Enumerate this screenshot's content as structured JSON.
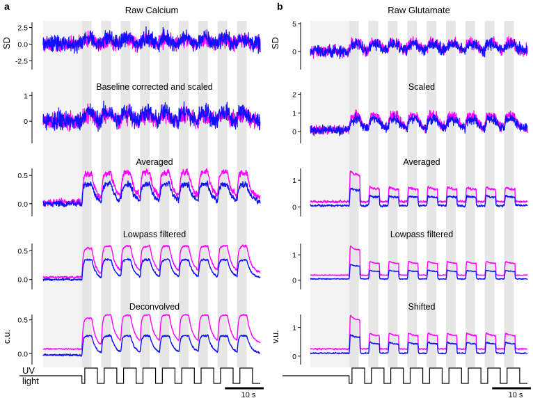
{
  "colors": {
    "series_a": "#ff00ff",
    "series_b": "#1010ff",
    "stim_band": "#e6e6e6",
    "baseline_band": "#f3f3f3",
    "axis": "#000000"
  },
  "panels": [
    {
      "letter": "a",
      "title": "Raw Calcium",
      "stimulus_label_line1": "UV",
      "stimulus_label_line2": "light",
      "scalebar_label": "10 s",
      "time_range_s": [
        0,
        56
      ],
      "baseline_end_s": 10,
      "stim_on_s": [
        10,
        15,
        20,
        25,
        30,
        35,
        40,
        45,
        50
      ],
      "stim_duration_s": 2.5
    },
    {
      "letter": "b",
      "title": "Raw Glutamate",
      "scalebar_label": "10 s",
      "time_range_s": [
        0,
        56
      ],
      "baseline_end_s": 10,
      "stim_on_s": [
        10,
        15,
        20,
        25,
        30,
        35,
        40,
        45,
        50
      ],
      "stim_duration_s": 2.5
    }
  ],
  "chart_data": [
    {
      "type": "line",
      "panel": "a",
      "row": 0,
      "title": "",
      "ylabel": "SD",
      "ylim": [
        -3.2,
        3.5
      ],
      "yticks": [
        -2.5,
        0,
        2.5
      ],
      "ytick_labels": [
        "-2.5",
        "0.0",
        "2.5"
      ],
      "kind": "noise",
      "series": [
        {
          "baseline": 0.0,
          "response": 0.6,
          "noise": 0.55,
          "decay": 1.2
        },
        {
          "baseline": 0.0,
          "response": 0.9,
          "noise": 0.6,
          "decay": 1.2
        }
      ]
    },
    {
      "type": "line",
      "panel": "a",
      "row": 1,
      "title": "Baseline corrected and scaled",
      "ylabel": "",
      "ylim": [
        -0.7,
        1.2
      ],
      "yticks": [
        0,
        1
      ],
      "ytick_labels": [
        "0",
        "1"
      ],
      "kind": "noise",
      "series": [
        {
          "baseline": 0.0,
          "response": 0.25,
          "noise": 0.16,
          "decay": 1.2
        },
        {
          "baseline": 0.0,
          "response": 0.35,
          "noise": 0.18,
          "decay": 1.2
        }
      ]
    },
    {
      "type": "line",
      "panel": "a",
      "row": 2,
      "title": "Averaged",
      "ylabel": "",
      "ylim": [
        -0.15,
        0.65
      ],
      "yticks": [
        0.0,
        0.5
      ],
      "ytick_labels": [
        "0.0",
        "0.5"
      ],
      "kind": "calcium",
      "series": [
        {
          "baseline": 0.03,
          "response": 0.47,
          "tail": 0.06,
          "noise": 0.04
        },
        {
          "baseline": 0.0,
          "response": 0.33,
          "tail": 0.02,
          "noise": 0.035
        }
      ]
    },
    {
      "type": "line",
      "panel": "a",
      "row": 3,
      "title": "Lowpass filtered",
      "ylabel": "",
      "ylim": [
        -0.1,
        0.65
      ],
      "yticks": [
        0.0,
        0.5
      ],
      "ytick_labels": [
        "0.0",
        "0.5"
      ],
      "kind": "calcium",
      "series": [
        {
          "baseline": 0.04,
          "response": 0.48,
          "tail": 0.07,
          "noise": 0.012
        },
        {
          "baseline": 0.0,
          "response": 0.33,
          "tail": 0.02,
          "noise": 0.012
        }
      ]
    },
    {
      "type": "line",
      "panel": "a",
      "row": 4,
      "title": "Deconvolved",
      "ylabel": "c.u.",
      "ylim": [
        -0.1,
        0.6
      ],
      "yticks": [
        0.0,
        0.5
      ],
      "ytick_labels": [
        "0.0",
        "0.5"
      ],
      "kind": "calcium",
      "series": [
        {
          "baseline": 0.07,
          "response": 0.43,
          "tail": 0.08,
          "noise": 0.006
        },
        {
          "baseline": -0.02,
          "response": 0.27,
          "tail": 0.02,
          "noise": 0.01
        }
      ]
    },
    {
      "type": "line",
      "panel": "b",
      "row": 0,
      "title": "",
      "ylabel": "SD",
      "ylim": [
        -2.5,
        5.5
      ],
      "yticks": [
        0,
        5
      ],
      "ytick_labels": [
        "0",
        "5"
      ],
      "kind": "noise",
      "series": [
        {
          "baseline": 0.0,
          "response": 1.6,
          "noise": 0.5,
          "decay": 0.8
        },
        {
          "baseline": 0.0,
          "response": 1.3,
          "noise": 0.5,
          "decay": 0.8
        }
      ]
    },
    {
      "type": "line",
      "panel": "b",
      "row": 1,
      "title": "Scaled",
      "ylabel": "",
      "ylim": [
        -0.4,
        2.2
      ],
      "yticks": [
        0,
        1,
        2
      ],
      "ytick_labels": [
        "0",
        "1",
        "2"
      ],
      "kind": "noise",
      "series": [
        {
          "baseline": 0.1,
          "response": 0.75,
          "noise": 0.12,
          "decay": 0.8
        },
        {
          "baseline": 0.1,
          "response": 0.55,
          "noise": 0.12,
          "decay": 0.8
        }
      ]
    },
    {
      "type": "line",
      "panel": "b",
      "row": 2,
      "title": "Averaged",
      "ylabel": "",
      "ylim": [
        -0.2,
        1.5
      ],
      "yticks": [
        0,
        1
      ],
      "ytick_labels": [
        "0",
        "1"
      ],
      "kind": "glutamate",
      "series": [
        {
          "baseline": 0.2,
          "response": 0.68,
          "peak_first": 1.3,
          "noise": 0.03
        },
        {
          "baseline": 0.05,
          "response": 0.4,
          "peak_first": 0.7,
          "noise": 0.03
        }
      ]
    },
    {
      "type": "line",
      "panel": "b",
      "row": 3,
      "title": "Lowpass filtered",
      "ylabel": "",
      "ylim": [
        -0.2,
        1.5
      ],
      "yticks": [
        0,
        1
      ],
      "ytick_labels": [
        "0",
        "1"
      ],
      "kind": "glutamate",
      "series": [
        {
          "baseline": 0.2,
          "response": 0.68,
          "peak_first": 1.3,
          "noise": 0.012
        },
        {
          "baseline": 0.05,
          "response": 0.38,
          "peak_first": 0.62,
          "noise": 0.012
        }
      ]
    },
    {
      "type": "line",
      "panel": "b",
      "row": 4,
      "title": "Shifted",
      "ylabel": "v.u.",
      "ylim": [
        -0.15,
        1.5
      ],
      "yticks": [
        0,
        1
      ],
      "ytick_labels": [
        "0",
        "1"
      ],
      "kind": "glutamate",
      "series": [
        {
          "baseline": 0.25,
          "response": 0.72,
          "peak_first": 1.35,
          "noise": 0.015
        },
        {
          "baseline": 0.1,
          "response": 0.45,
          "peak_first": 0.72,
          "noise": 0.015
        }
      ]
    }
  ]
}
